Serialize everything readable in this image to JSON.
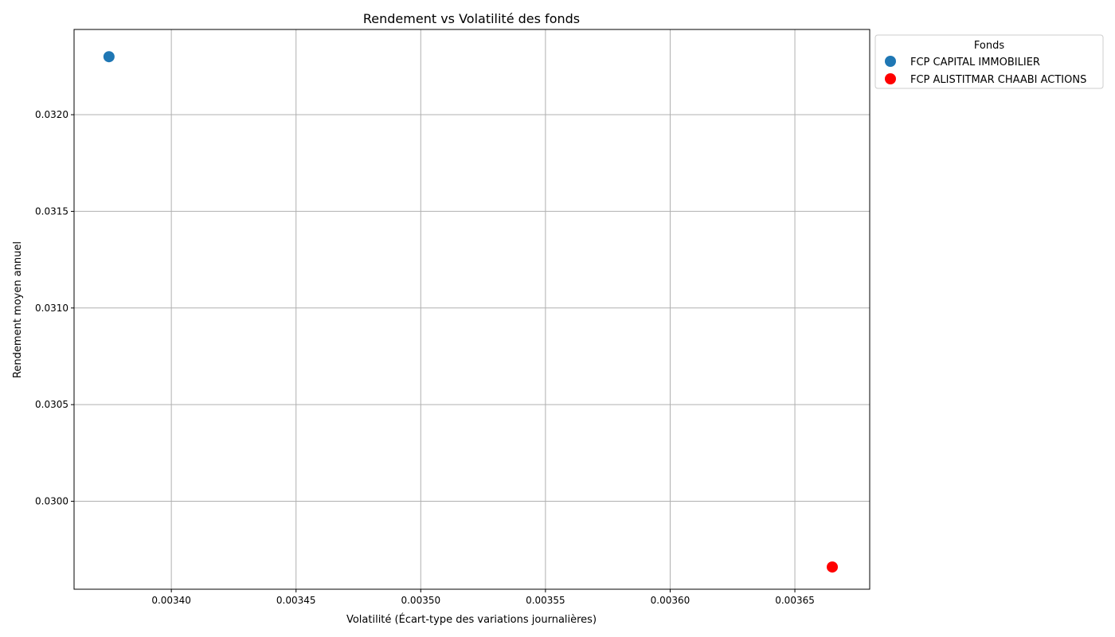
{
  "chart_data": {
    "type": "scatter",
    "title": "Rendement vs Volatilité des fonds",
    "xlabel": "Volatilité (Écart-type des variations journalières)",
    "ylabel": "Rendement moyen annuel",
    "xlim": [
      0.003361,
      0.00368
    ],
    "ylim": [
      0.029545,
      0.032441
    ],
    "x_ticks": [
      0.0034,
      0.00345,
      0.0035,
      0.00355,
      0.0036,
      0.00365
    ],
    "x_tick_labels": [
      "0.00340",
      "0.00345",
      "0.00350",
      "0.00355",
      "0.00360",
      "0.00365"
    ],
    "y_ticks": [
      0.03,
      0.0305,
      0.031,
      0.0315,
      0.032
    ],
    "y_tick_labels": [
      "0.0300",
      "0.0305",
      "0.0310",
      "0.0315",
      "0.0320"
    ],
    "grid": true,
    "legend": {
      "title": "Fonds",
      "placement": "outside-top-right"
    },
    "series": [
      {
        "name": "FCP CAPITAL IMMOBILIER",
        "color": "#1f77b4",
        "points": [
          {
            "x": 0.003375,
            "y": 0.0323
          }
        ]
      },
      {
        "name": "FCP ALISTITMAR CHAABI ACTIONS",
        "color": "#ff0000",
        "points": [
          {
            "x": 0.003665,
            "y": 0.02966
          }
        ]
      }
    ]
  }
}
